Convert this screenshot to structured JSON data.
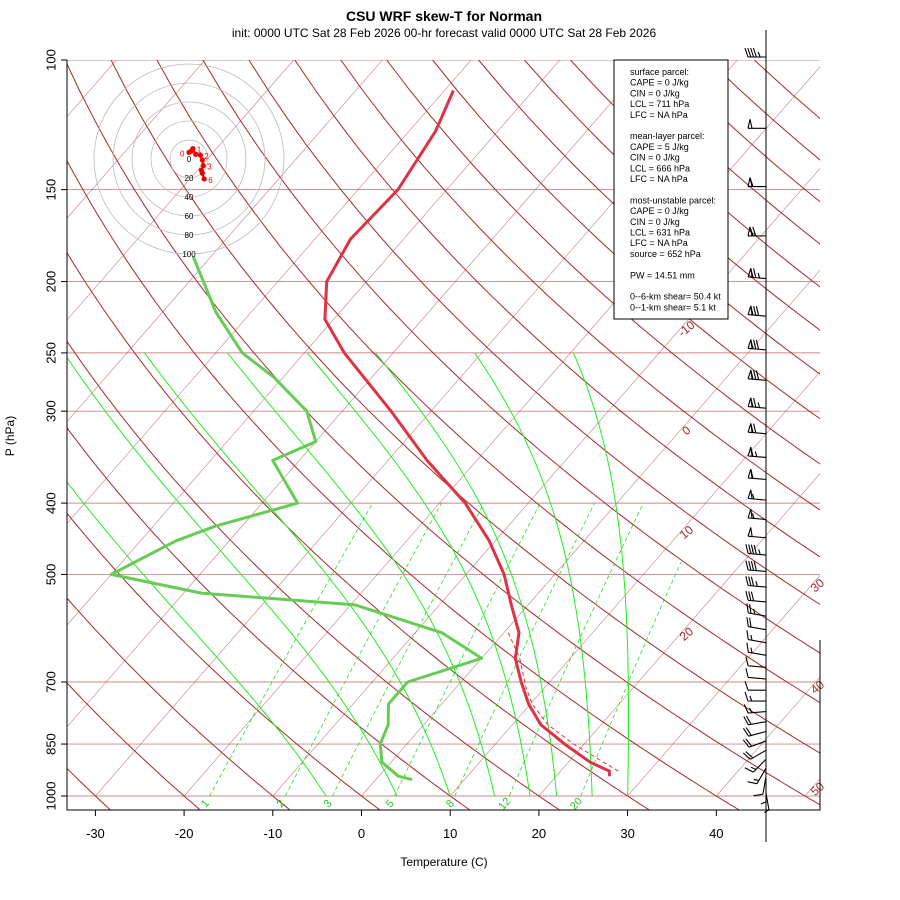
{
  "chart_data": {
    "type": "skew-t",
    "title": "CSU WRF skew-T for Norman",
    "subtitle": "init: 0000 UTC Sat 28 Feb 2026    00-hr forecast valid 0000 UTC Sat 28 Feb 2026",
    "xlabel": "Temperature (C)",
    "ylabel": "P (hPa)",
    "x_ticks": [
      "-30",
      "-20",
      "-10",
      "0",
      "10",
      "20",
      "30",
      "40"
    ],
    "x_tick_values": [
      -30,
      -20,
      -10,
      0,
      10,
      20,
      30,
      40
    ],
    "p_ticks": [
      "100",
      "150",
      "200",
      "250",
      "300",
      "400",
      "500",
      "700",
      "850",
      "1000"
    ],
    "p_tick_values": [
      100,
      150,
      200,
      250,
      300,
      400,
      500,
      700,
      850,
      1000
    ],
    "isotherm_labels": [
      "-10",
      "0",
      "10",
      "20",
      "30",
      "40",
      "50"
    ],
    "isotherm_label_values": [
      -10,
      0,
      10,
      20,
      30,
      40,
      50
    ],
    "mixing_ratio_labels": [
      "1",
      "2",
      "3",
      "5",
      "8",
      "12",
      "20"
    ],
    "mixing_ratio_values": [
      1,
      2,
      3,
      5,
      8,
      12,
      20
    ],
    "temperature": {
      "color": "#dd3344",
      "p": [
        940,
        925,
        900,
        850,
        800,
        750,
        700,
        650,
        600,
        550,
        500,
        450,
        400,
        350,
        300,
        250,
        225,
        200,
        175,
        150,
        125,
        110
      ],
      "t": [
        26.0,
        25.5,
        22.5,
        17.8,
        13.2,
        9.8,
        6.8,
        3.8,
        1.7,
        -1.9,
        -5.7,
        -10.7,
        -17.1,
        -25.6,
        -34.5,
        -45.5,
        -51.0,
        -54.5,
        -56.0,
        -55.5,
        -57.0,
        -59.0
      ]
    },
    "dewpoint": {
      "color": "#66cc55",
      "p": [
        950,
        940,
        900,
        850,
        800,
        750,
        700,
        650,
        600,
        550,
        530,
        500,
        450,
        430,
        400,
        350,
        330,
        300,
        270,
        250,
        220,
        185
      ],
      "t": [
        4.1,
        2.2,
        -1.0,
        -3.0,
        -4.0,
        -6.0,
        -6.0,
        0.0,
        -7.0,
        -19.5,
        -38.0,
        -50.0,
        -46.0,
        -43.0,
        -36.0,
        -43.0,
        -40.0,
        -44.0,
        -51.0,
        -57.0,
        -64.0,
        -72.0
      ]
    },
    "parcel": {
      "style": "dashed",
      "color": "#dd3344",
      "p": [
        925,
        850,
        800,
        750,
        711,
        650,
        600
      ],
      "t": [
        26.5,
        18.8,
        14.0,
        10.2,
        7.8,
        4.3,
        0.5
      ]
    },
    "hodograph": {
      "ring_labels": [
        "0",
        "20",
        "40",
        "60",
        "80",
        "100"
      ],
      "ring_values": [
        0,
        20,
        40,
        60,
        80,
        100
      ],
      "u": [
        0,
        2,
        4,
        7,
        12,
        14,
        15,
        13,
        14,
        16
      ],
      "v": [
        7,
        8,
        11,
        5,
        4,
        -1,
        -7,
        -12,
        -15,
        -21
      ],
      "point_labels": [
        "0",
        "1",
        "2",
        "3",
        "6"
      ],
      "point_label_values": [
        0,
        1,
        2,
        3,
        6
      ]
    },
    "wind_barbs": {
      "p": [
        1000,
        975,
        950,
        925,
        900,
        875,
        850,
        825,
        800,
        775,
        750,
        725,
        700,
        675,
        650,
        625,
        600,
        575,
        550,
        525,
        500,
        475,
        450,
        425,
        400,
        375,
        350,
        325,
        300,
        275,
        250,
        225,
        200,
        175,
        150,
        125,
        100
      ],
      "speed_kt": [
        5,
        5,
        10,
        15,
        15,
        20,
        20,
        20,
        20,
        15,
        15,
        10,
        10,
        10,
        15,
        15,
        20,
        25,
        30,
        35,
        40,
        45,
        50,
        55,
        55,
        60,
        65,
        70,
        75,
        80,
        80,
        80,
        75,
        70,
        60,
        50,
        45
      ],
      "dir_deg": [
        170,
        180,
        190,
        210,
        225,
        240,
        250,
        255,
        260,
        265,
        270,
        270,
        275,
        275,
        280,
        280,
        280,
        280,
        275,
        275,
        275,
        275,
        275,
        275,
        275,
        275,
        275,
        275,
        275,
        275,
        275,
        275,
        275,
        270,
        270,
        270,
        270
      ]
    },
    "legend_lines": [
      "surface parcel:",
      "CAPE = 0 J/kg",
      "CIN = 0 J/kg",
      "LCL = 711 hPa",
      "LFC = NA hPa",
      "",
      "mean-layer parcel:",
      "CAPE = 5 J/kg",
      "CIN = 0 J/kg",
      "LCL = 666 hPa",
      "LFC = NA hPa",
      "",
      "most-unstable parcel:",
      "CAPE = 0 J/kg",
      "CIN = 0 J/kg",
      "LCL = 631 hPa",
      "LFC = NA hPa",
      "source = 652 hPa",
      "",
      "PW =  14.51 mm",
      "",
      "0--6-km shear= 50.4 kt",
      "0--1-km shear= 5.1 kt"
    ],
    "legend_placement": "top-right",
    "colors": {
      "isotherm": "#a52a2a",
      "isobar": "#cc8888",
      "dry_adiabat": "#a52a2a",
      "moist_adiabat": "#22ee22",
      "mixing_ratio": "#22dd22",
      "hodograph": "#ee0000",
      "hodo_ring": "#bbbbbb",
      "barb": "#000000",
      "text": "#000000"
    }
  }
}
